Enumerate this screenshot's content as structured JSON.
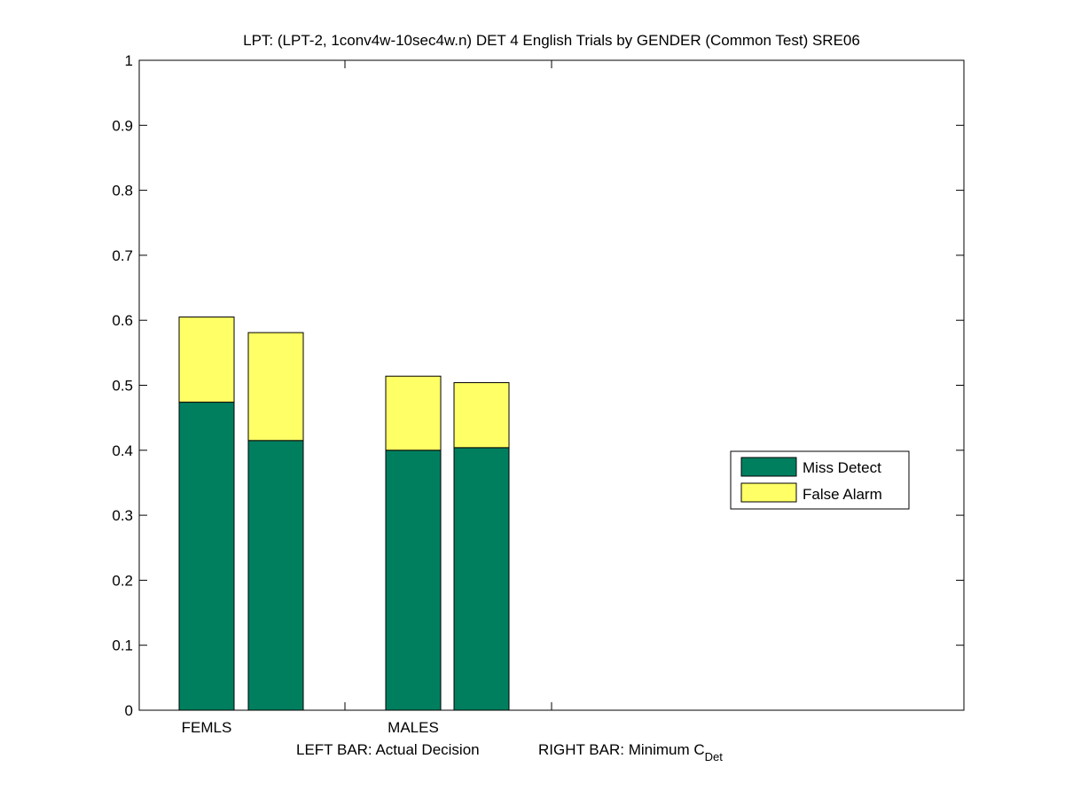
{
  "chart_data": {
    "type": "bar",
    "stacked": true,
    "title": "LPT: (LPT-2, 1conv4w-10sec4w.n) DET 4 English Trials by GENDER (Common Test) SRE06",
    "groups": [
      {
        "label": "FEMLS",
        "bars": [
          {
            "miss": 0.474,
            "fa": 0.131
          },
          {
            "miss": 0.415,
            "fa": 0.166
          }
        ]
      },
      {
        "label": "MALES",
        "bars": [
          {
            "miss": 0.4,
            "fa": 0.114
          },
          {
            "miss": 0.404,
            "fa": 0.1
          }
        ]
      }
    ],
    "series": [
      {
        "name": "Miss Detect",
        "color": "#007f5f"
      },
      {
        "name": "False Alarm",
        "color": "#ffff66"
      }
    ],
    "yticks": [
      "0",
      "0.1",
      "0.2",
      "0.3",
      "0.4",
      "0.5",
      "0.6",
      "0.7",
      "0.8",
      "0.9",
      "1"
    ],
    "ylim": [
      0,
      1
    ],
    "xlabel": {
      "left": "LEFT BAR: Actual Decision",
      "right_prefix": "RIGHT BAR: Minimum C",
      "right_subscript": "Det"
    },
    "legend": {
      "position": "right"
    },
    "grid": false
  }
}
